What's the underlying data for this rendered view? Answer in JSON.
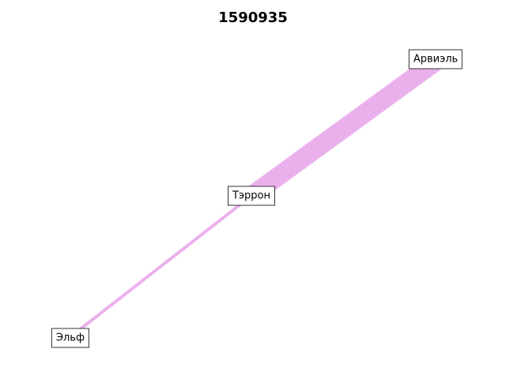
{
  "title": "1590935",
  "flow_color": "#eab0ec",
  "nodes": [
    {
      "id": "arviel",
      "label": "Арвиэль"
    },
    {
      "id": "terron",
      "label": "Тэррон"
    },
    {
      "id": "elf",
      "label": "Эльф"
    }
  ],
  "links": [
    {
      "source": "elf",
      "target": "terron",
      "weight": 1
    },
    {
      "source": "terron",
      "target": "arviel",
      "weight": 6
    }
  ]
}
